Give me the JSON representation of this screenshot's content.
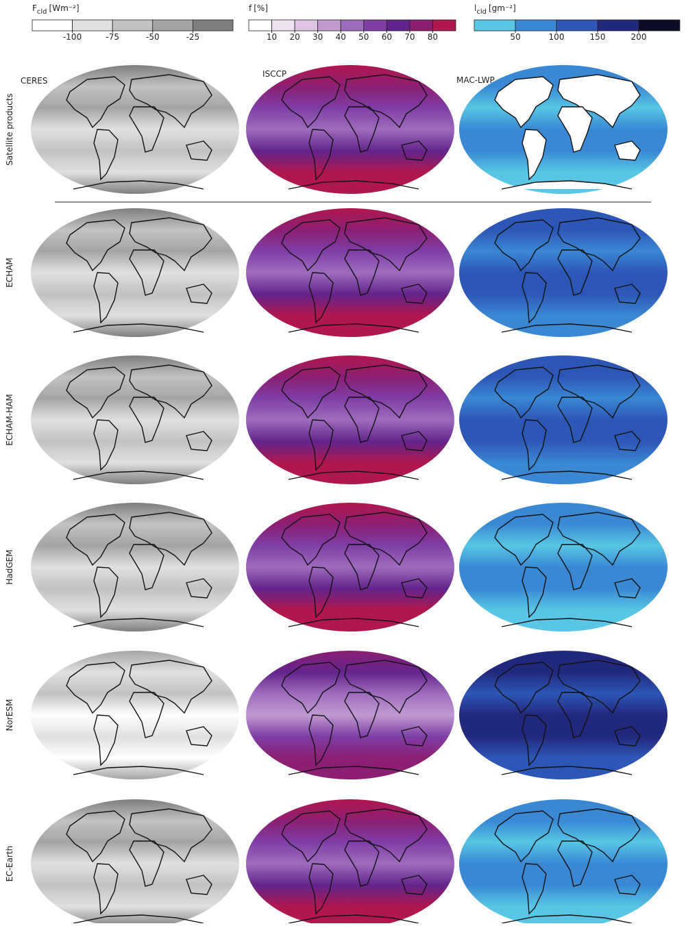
{
  "colorbars": [
    {
      "symbol": "F",
      "subscript": "cld",
      "unit": "[Wm⁻²]",
      "range": [
        -125,
        0
      ],
      "ticks": [
        -100,
        -75,
        -50,
        -25
      ],
      "colors": [
        "#ffffff",
        "#e0e0e0",
        "#c2c2c2",
        "#a4a4a4",
        "#7e7e7e"
      ]
    },
    {
      "symbol": "f",
      "unit": "[%]",
      "range": [
        0,
        90
      ],
      "ticks": [
        10,
        20,
        30,
        40,
        50,
        60,
        70,
        80
      ],
      "colors": [
        "#ffffff",
        "#efe2f0",
        "#dcc4e2",
        "#c19ad0",
        "#9e6cbd",
        "#7e3ea6",
        "#62248c",
        "#8c1f72",
        "#b0174f"
      ]
    },
    {
      "symbol": "l",
      "subscript": "cld",
      "unit": "[gm⁻²]",
      "range": [
        0,
        250
      ],
      "ticks": [
        50,
        100,
        150,
        200
      ],
      "colors": [
        "#58c6e4",
        "#3a88d4",
        "#2e56b6",
        "#22297c",
        "#0c0c26"
      ]
    }
  ],
  "columns": [
    "CERES",
    "ISCCP",
    "MAC-LWP"
  ],
  "rows": [
    "Satellite products",
    "ECHAM",
    "ECHAM-HAM",
    "HadGEM",
    "NorESM",
    "EC-Earth"
  ]
}
